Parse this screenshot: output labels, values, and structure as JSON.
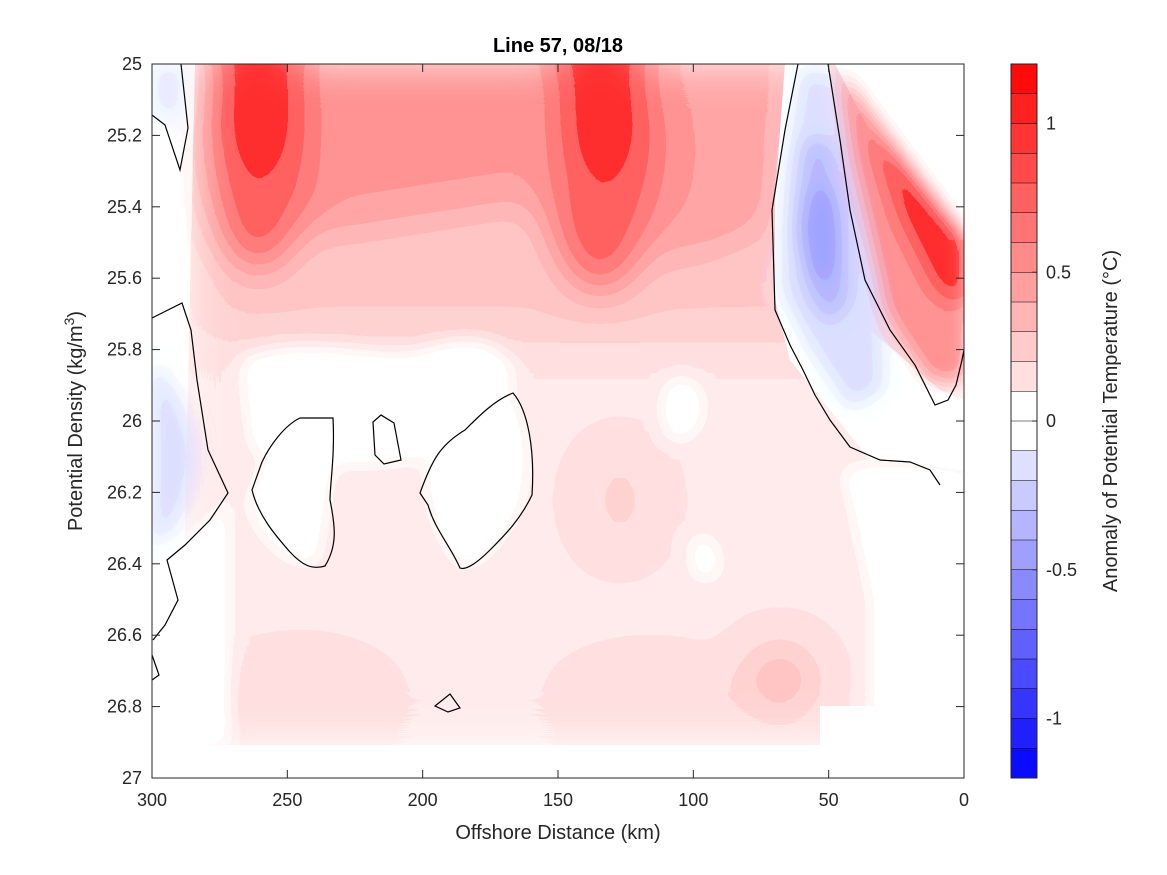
{
  "chart_data": {
    "type": "contour",
    "title": "Line 57, 08/18",
    "xlabel": "Offshore Distance (km)",
    "ylabel_main": "Potential Density (kg/m",
    "ylabel_sup": "3",
    "ylabel_end": ")",
    "x_range": [
      300,
      0
    ],
    "x_reversed": true,
    "x_ticks": [
      300,
      250,
      200,
      150,
      100,
      50,
      0
    ],
    "y_range": [
      25,
      27
    ],
    "y_reversed": true,
    "y_ticks": [
      "25",
      "25.2",
      "25.4",
      "25.6",
      "25.8",
      "26",
      "26.2",
      "26.4",
      "26.6",
      "26.8",
      "27"
    ],
    "y_tick_values": [
      25,
      25.2,
      25.4,
      25.6,
      25.8,
      26,
      26.2,
      26.4,
      26.6,
      26.8,
      27
    ],
    "grid": false,
    "colorbar": {
      "label": "Anomaly of Potential Temperature (°C)",
      "range": [
        -1.2,
        1.2
      ],
      "levels": 24,
      "ticks": [
        "1",
        "0.5",
        "0",
        "-0.5",
        "-1"
      ],
      "tick_values": [
        1,
        0.5,
        0,
        -0.5,
        -1
      ],
      "colors": {
        "positive": "#ff0000",
        "negative": "#0000ff",
        "neutral": "#ffffff"
      }
    },
    "features": [
      {
        "kind": "warm-core",
        "x_km": 262,
        "density": 25.05,
        "anomaly": 1.15
      },
      {
        "kind": "warm-core",
        "x_km": 135,
        "density": 25.1,
        "anomaly": 1.15
      },
      {
        "kind": "warm-nearshore",
        "x_km": 5,
        "density": 25.55,
        "anomaly": 1.0
      },
      {
        "kind": "cold-core",
        "x_km": 53,
        "density": 25.55,
        "anomaly": -0.35
      },
      {
        "kind": "cold-patch",
        "x_km": 292,
        "density": 26.1,
        "anomaly": -0.15
      }
    ]
  }
}
